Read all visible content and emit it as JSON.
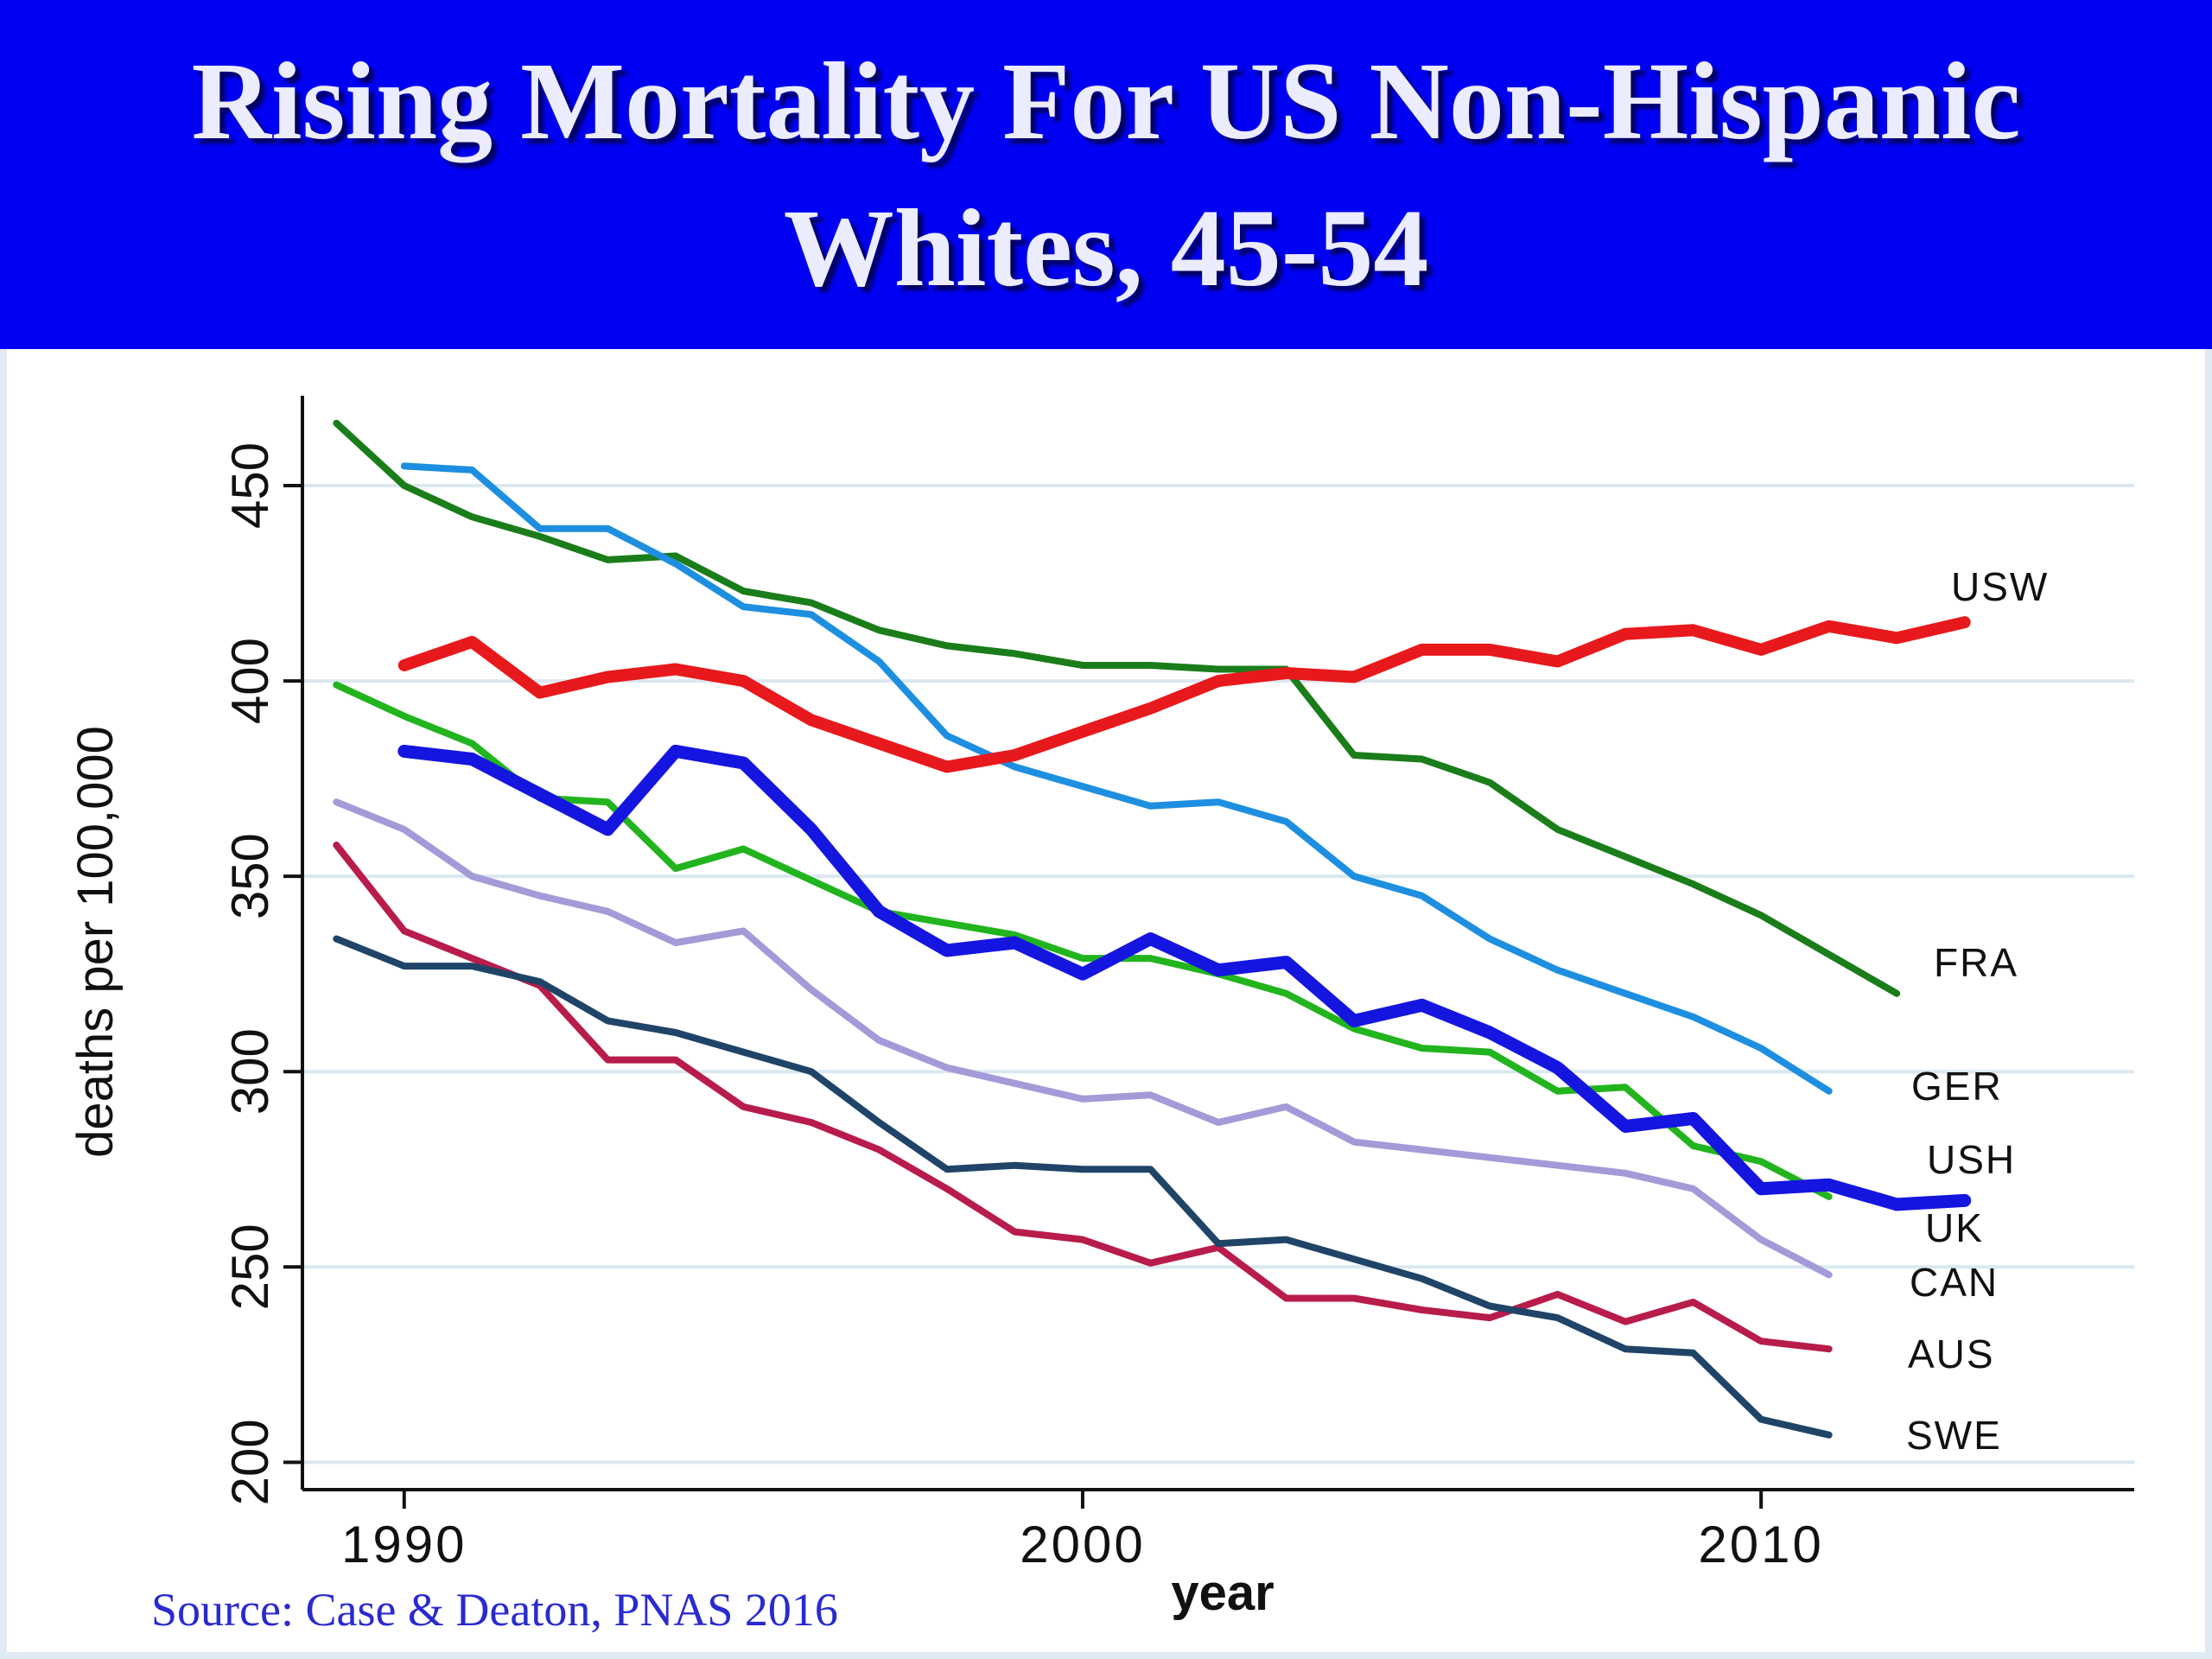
{
  "slide": {
    "title": "Rising Mortality For US Non-Hispanic Whites, 45-54",
    "source": "Source: Case & Deaton, PNAS 2016"
  },
  "chart_data": {
    "type": "line",
    "title": "",
    "xlabel": "year",
    "ylabel": "deaths per 100,000",
    "xlim": [
      1988.5,
      2015.5
    ],
    "ylim": [
      193,
      473
    ],
    "x_ticks": [
      1990,
      2000,
      2010
    ],
    "y_ticks": [
      200,
      250,
      300,
      350,
      400,
      450
    ],
    "grid": "horizontal",
    "legend": "series labels at line ends (right)",
    "series": [
      {
        "name": "USW",
        "color": "#e8191c",
        "width": 14,
        "points": [
          [
            1990,
            404
          ],
          [
            1991,
            410
          ],
          [
            1992,
            397
          ],
          [
            1993,
            401
          ],
          [
            1994,
            403
          ],
          [
            1995,
            400
          ],
          [
            1996,
            390
          ],
          [
            1997,
            384
          ],
          [
            1998,
            378
          ],
          [
            1999,
            381
          ],
          [
            2000,
            387
          ],
          [
            2001,
            393
          ],
          [
            2002,
            400
          ],
          [
            2003,
            402
          ],
          [
            2004,
            401
          ],
          [
            2005,
            408
          ],
          [
            2006,
            408
          ],
          [
            2007,
            405
          ],
          [
            2008,
            412
          ],
          [
            2009,
            413
          ],
          [
            2010,
            408
          ],
          [
            2011,
            414
          ],
          [
            2012,
            411
          ],
          [
            2013,
            415
          ]
        ]
      },
      {
        "name": "FRA",
        "color": "#1a7d1a",
        "width": 8,
        "points": [
          [
            1989,
            466
          ],
          [
            1990,
            450
          ],
          [
            1991,
            442
          ],
          [
            1992,
            437
          ],
          [
            1993,
            431
          ],
          [
            1994,
            432
          ],
          [
            1995,
            423
          ],
          [
            1996,
            420
          ],
          [
            1997,
            413
          ],
          [
            1998,
            409
          ],
          [
            1999,
            407
          ],
          [
            2000,
            404
          ],
          [
            2001,
            404
          ],
          [
            2002,
            403
          ],
          [
            2003,
            403
          ],
          [
            2004,
            381
          ],
          [
            2005,
            380
          ],
          [
            2006,
            374
          ],
          [
            2007,
            362
          ],
          [
            2008,
            355
          ],
          [
            2009,
            348
          ],
          [
            2010,
            340
          ],
          [
            2011,
            330
          ],
          [
            2012,
            320
          ]
        ]
      },
      {
        "name": "GER",
        "color": "#1e8fe0",
        "width": 8,
        "points": [
          [
            1990,
            455
          ],
          [
            1991,
            454
          ],
          [
            1992,
            439
          ],
          [
            1993,
            439
          ],
          [
            1994,
            430
          ],
          [
            1995,
            419
          ],
          [
            1996,
            417
          ],
          [
            1997,
            405
          ],
          [
            1998,
            386
          ],
          [
            1999,
            378
          ],
          [
            2000,
            373
          ],
          [
            2001,
            368
          ],
          [
            2002,
            369
          ],
          [
            2003,
            364
          ],
          [
            2004,
            350
          ],
          [
            2005,
            345
          ],
          [
            2006,
            334
          ],
          [
            2007,
            326
          ],
          [
            2008,
            320
          ],
          [
            2009,
            314
          ],
          [
            2010,
            306
          ],
          [
            2011,
            295
          ]
        ]
      },
      {
        "name": "USH",
        "color": "#1515e0",
        "width": 15,
        "points": [
          [
            1990,
            382
          ],
          [
            1991,
            380
          ],
          [
            1992,
            371
          ],
          [
            1993,
            362
          ],
          [
            1994,
            382
          ],
          [
            1995,
            379
          ],
          [
            1996,
            362
          ],
          [
            1997,
            341
          ],
          [
            1998,
            331
          ],
          [
            1999,
            333
          ],
          [
            2000,
            325
          ],
          [
            2001,
            334
          ],
          [
            2002,
            326
          ],
          [
            2003,
            328
          ],
          [
            2004,
            313
          ],
          [
            2005,
            317
          ],
          [
            2006,
            310
          ],
          [
            2007,
            301
          ],
          [
            2008,
            286
          ],
          [
            2009,
            288
          ],
          [
            2010,
            270
          ],
          [
            2011,
            271
          ],
          [
            2012,
            266
          ],
          [
            2013,
            267
          ]
        ]
      },
      {
        "name": "UK",
        "color": "#22b41e",
        "width": 8,
        "points": [
          [
            1989,
            399
          ],
          [
            1990,
            391
          ],
          [
            1991,
            384
          ],
          [
            1992,
            370
          ],
          [
            1993,
            369
          ],
          [
            1994,
            352
          ],
          [
            1995,
            357
          ],
          [
            1996,
            349
          ],
          [
            1997,
            341
          ],
          [
            1998,
            338
          ],
          [
            1999,
            335
          ],
          [
            2000,
            329
          ],
          [
            2001,
            329
          ],
          [
            2002,
            325
          ],
          [
            2003,
            320
          ],
          [
            2004,
            311
          ],
          [
            2005,
            306
          ],
          [
            2006,
            305
          ],
          [
            2007,
            295
          ],
          [
            2008,
            296
          ],
          [
            2009,
            281
          ],
          [
            2010,
            277
          ],
          [
            2011,
            268
          ]
        ]
      },
      {
        "name": "CAN",
        "color": "#a39ad8",
        "width": 8,
        "points": [
          [
            1989,
            369
          ],
          [
            1990,
            362
          ],
          [
            1991,
            350
          ],
          [
            1992,
            345
          ],
          [
            1993,
            341
          ],
          [
            1994,
            333
          ],
          [
            1995,
            336
          ],
          [
            1996,
            321
          ],
          [
            1997,
            308
          ],
          [
            1998,
            301
          ],
          [
            1999,
            297
          ],
          [
            2000,
            293
          ],
          [
            2001,
            294
          ],
          [
            2002,
            287
          ],
          [
            2003,
            291
          ],
          [
            2004,
            282
          ],
          [
            2005,
            280
          ],
          [
            2006,
            278
          ],
          [
            2007,
            276
          ],
          [
            2008,
            274
          ],
          [
            2009,
            270
          ],
          [
            2010,
            257
          ],
          [
            2011,
            248
          ]
        ]
      },
      {
        "name": "AUS",
        "color": "#b81c4a",
        "width": 8,
        "points": [
          [
            1989,
            358
          ],
          [
            1990,
            336
          ],
          [
            1991,
            329
          ],
          [
            1992,
            322
          ],
          [
            1993,
            303
          ],
          [
            1994,
            303
          ],
          [
            1995,
            291
          ],
          [
            1996,
            287
          ],
          [
            1997,
            280
          ],
          [
            1998,
            270
          ],
          [
            1999,
            259
          ],
          [
            2000,
            257
          ],
          [
            2001,
            251
          ],
          [
            2002,
            255
          ],
          [
            2003,
            242
          ],
          [
            2004,
            242
          ],
          [
            2005,
            239
          ],
          [
            2006,
            237
          ],
          [
            2007,
            243
          ],
          [
            2008,
            236
          ],
          [
            2009,
            241
          ],
          [
            2010,
            231
          ],
          [
            2011,
            229
          ]
        ]
      },
      {
        "name": "SWE",
        "color": "#1f4468",
        "width": 8,
        "points": [
          [
            1989,
            334
          ],
          [
            1990,
            327
          ],
          [
            1991,
            327
          ],
          [
            1992,
            323
          ],
          [
            1993,
            313
          ],
          [
            1994,
            310
          ],
          [
            1995,
            305
          ],
          [
            1996,
            300
          ],
          [
            1997,
            287
          ],
          [
            1998,
            275
          ],
          [
            1999,
            276
          ],
          [
            2000,
            275
          ],
          [
            2001,
            275
          ],
          [
            2002,
            256
          ],
          [
            2003,
            257
          ],
          [
            2004,
            252
          ],
          [
            2005,
            247
          ],
          [
            2006,
            240
          ],
          [
            2007,
            237
          ],
          [
            2008,
            229
          ],
          [
            2009,
            228
          ],
          [
            2010,
            211
          ],
          [
            2011,
            207
          ]
        ]
      }
    ]
  }
}
